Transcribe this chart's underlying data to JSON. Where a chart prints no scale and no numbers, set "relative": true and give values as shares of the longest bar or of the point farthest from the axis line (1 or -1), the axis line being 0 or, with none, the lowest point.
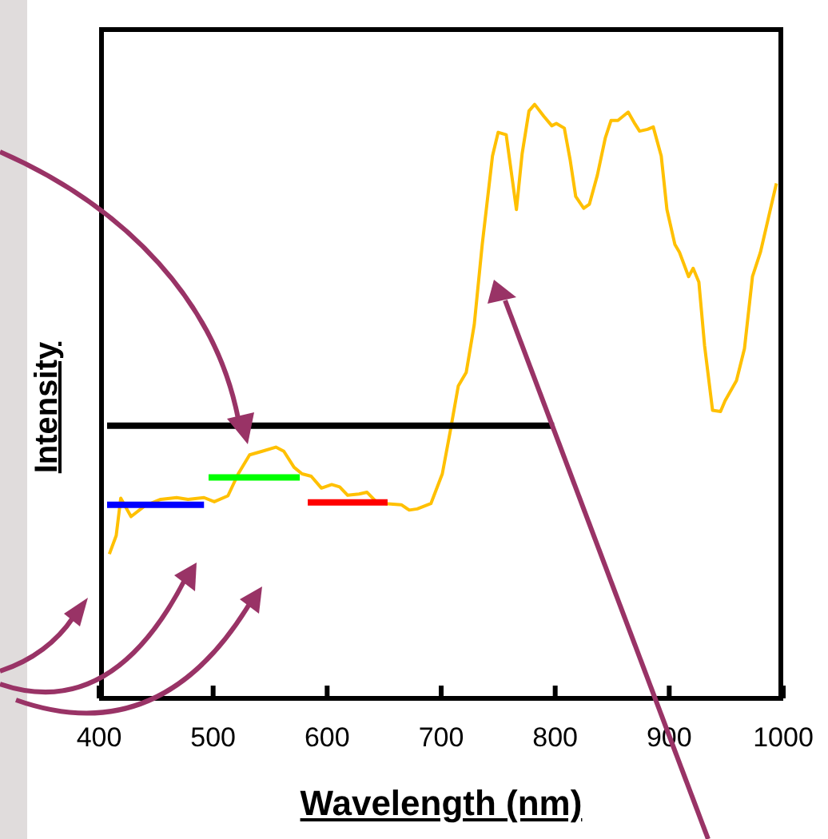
{
  "chart_data": {
    "type": "line",
    "relative": true,
    "xlabel": "Wavelength (nm)",
    "ylabel": "Intensity",
    "xlim": [
      400,
      1000
    ],
    "xticks": [
      400,
      500,
      600,
      700,
      800,
      900,
      1000
    ],
    "marker": "none",
    "line_style": "solid",
    "series": [
      {
        "color": "#ffc000",
        "x": [
          409,
          415,
          419,
          428,
          440,
          454,
          468,
          478,
          492,
          501,
          513,
          522,
          532,
          543,
          555,
          562,
          571,
          578,
          586,
          595,
          604,
          611,
          618,
          628,
          635,
          642,
          651,
          665,
          672,
          679,
          691,
          701,
          708,
          715,
          722,
          729,
          736,
          745,
          750,
          757,
          766,
          771,
          777,
          782,
          790,
          797,
          801,
          808,
          813,
          818,
          825,
          830,
          837,
          844,
          849,
          855,
          864,
          870,
          874,
          881,
          886,
          893,
          898,
          905,
          909,
          917,
          921,
          926,
          931,
          938,
          945,
          949,
          959,
          966,
          973,
          980,
          987,
          994
        ],
        "values": [
          0.243,
          0.274,
          0.337,
          0.306,
          0.324,
          0.335,
          0.338,
          0.335,
          0.338,
          0.331,
          0.341,
          0.378,
          0.41,
          0.416,
          0.423,
          0.416,
          0.389,
          0.378,
          0.374,
          0.354,
          0.36,
          0.356,
          0.342,
          0.344,
          0.347,
          0.333,
          0.328,
          0.326,
          0.317,
          0.319,
          0.328,
          0.378,
          0.45,
          0.526,
          0.549,
          0.629,
          0.764,
          0.913,
          0.953,
          0.949,
          0.823,
          0.917,
          0.989,
          1,
          0.98,
          0.964,
          0.968,
          0.96,
          0.908,
          0.845,
          0.825,
          0.832,
          0.881,
          0.944,
          0.973,
          0.973,
          0.987,
          0.967,
          0.955,
          0.958,
          0.962,
          0.913,
          0.823,
          0.764,
          0.751,
          0.71,
          0.724,
          0.701,
          0.594,
          0.485,
          0.483,
          0.501,
          0.535,
          0.589,
          0.71,
          0.751,
          0.809,
          0.867
        ]
      },
      {
        "color": "#000000",
        "x": [
          407,
          799
        ],
        "values": [
          0.459,
          0.459
        ]
      },
      {
        "color": "#0000ff",
        "x": [
          407,
          492
        ],
        "values": [
          0.326,
          0.326
        ]
      },
      {
        "color": "#00ff00",
        "x": [
          496,
          576
        ],
        "values": [
          0.372,
          0.372
        ]
      },
      {
        "color": "#ff0000",
        "x": [
          583,
          653
        ],
        "values": [
          0.33,
          0.33
        ]
      }
    ]
  }
}
